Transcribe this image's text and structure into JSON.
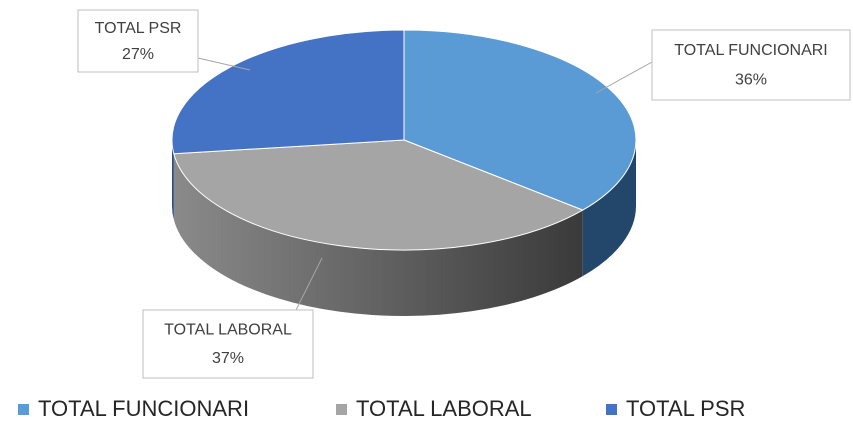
{
  "chart_data": {
    "type": "pie3d",
    "categories": [
      "TOTAL FUNCIONARI",
      "TOTAL LABORAL",
      "TOTAL PSR"
    ],
    "values": [
      36,
      37,
      27
    ],
    "value_labels": [
      "36%",
      "37%",
      "27%"
    ],
    "colors": [
      "#5b9bd5",
      "#a5a5a5",
      "#4472c4"
    ],
    "legend": "bottom"
  }
}
